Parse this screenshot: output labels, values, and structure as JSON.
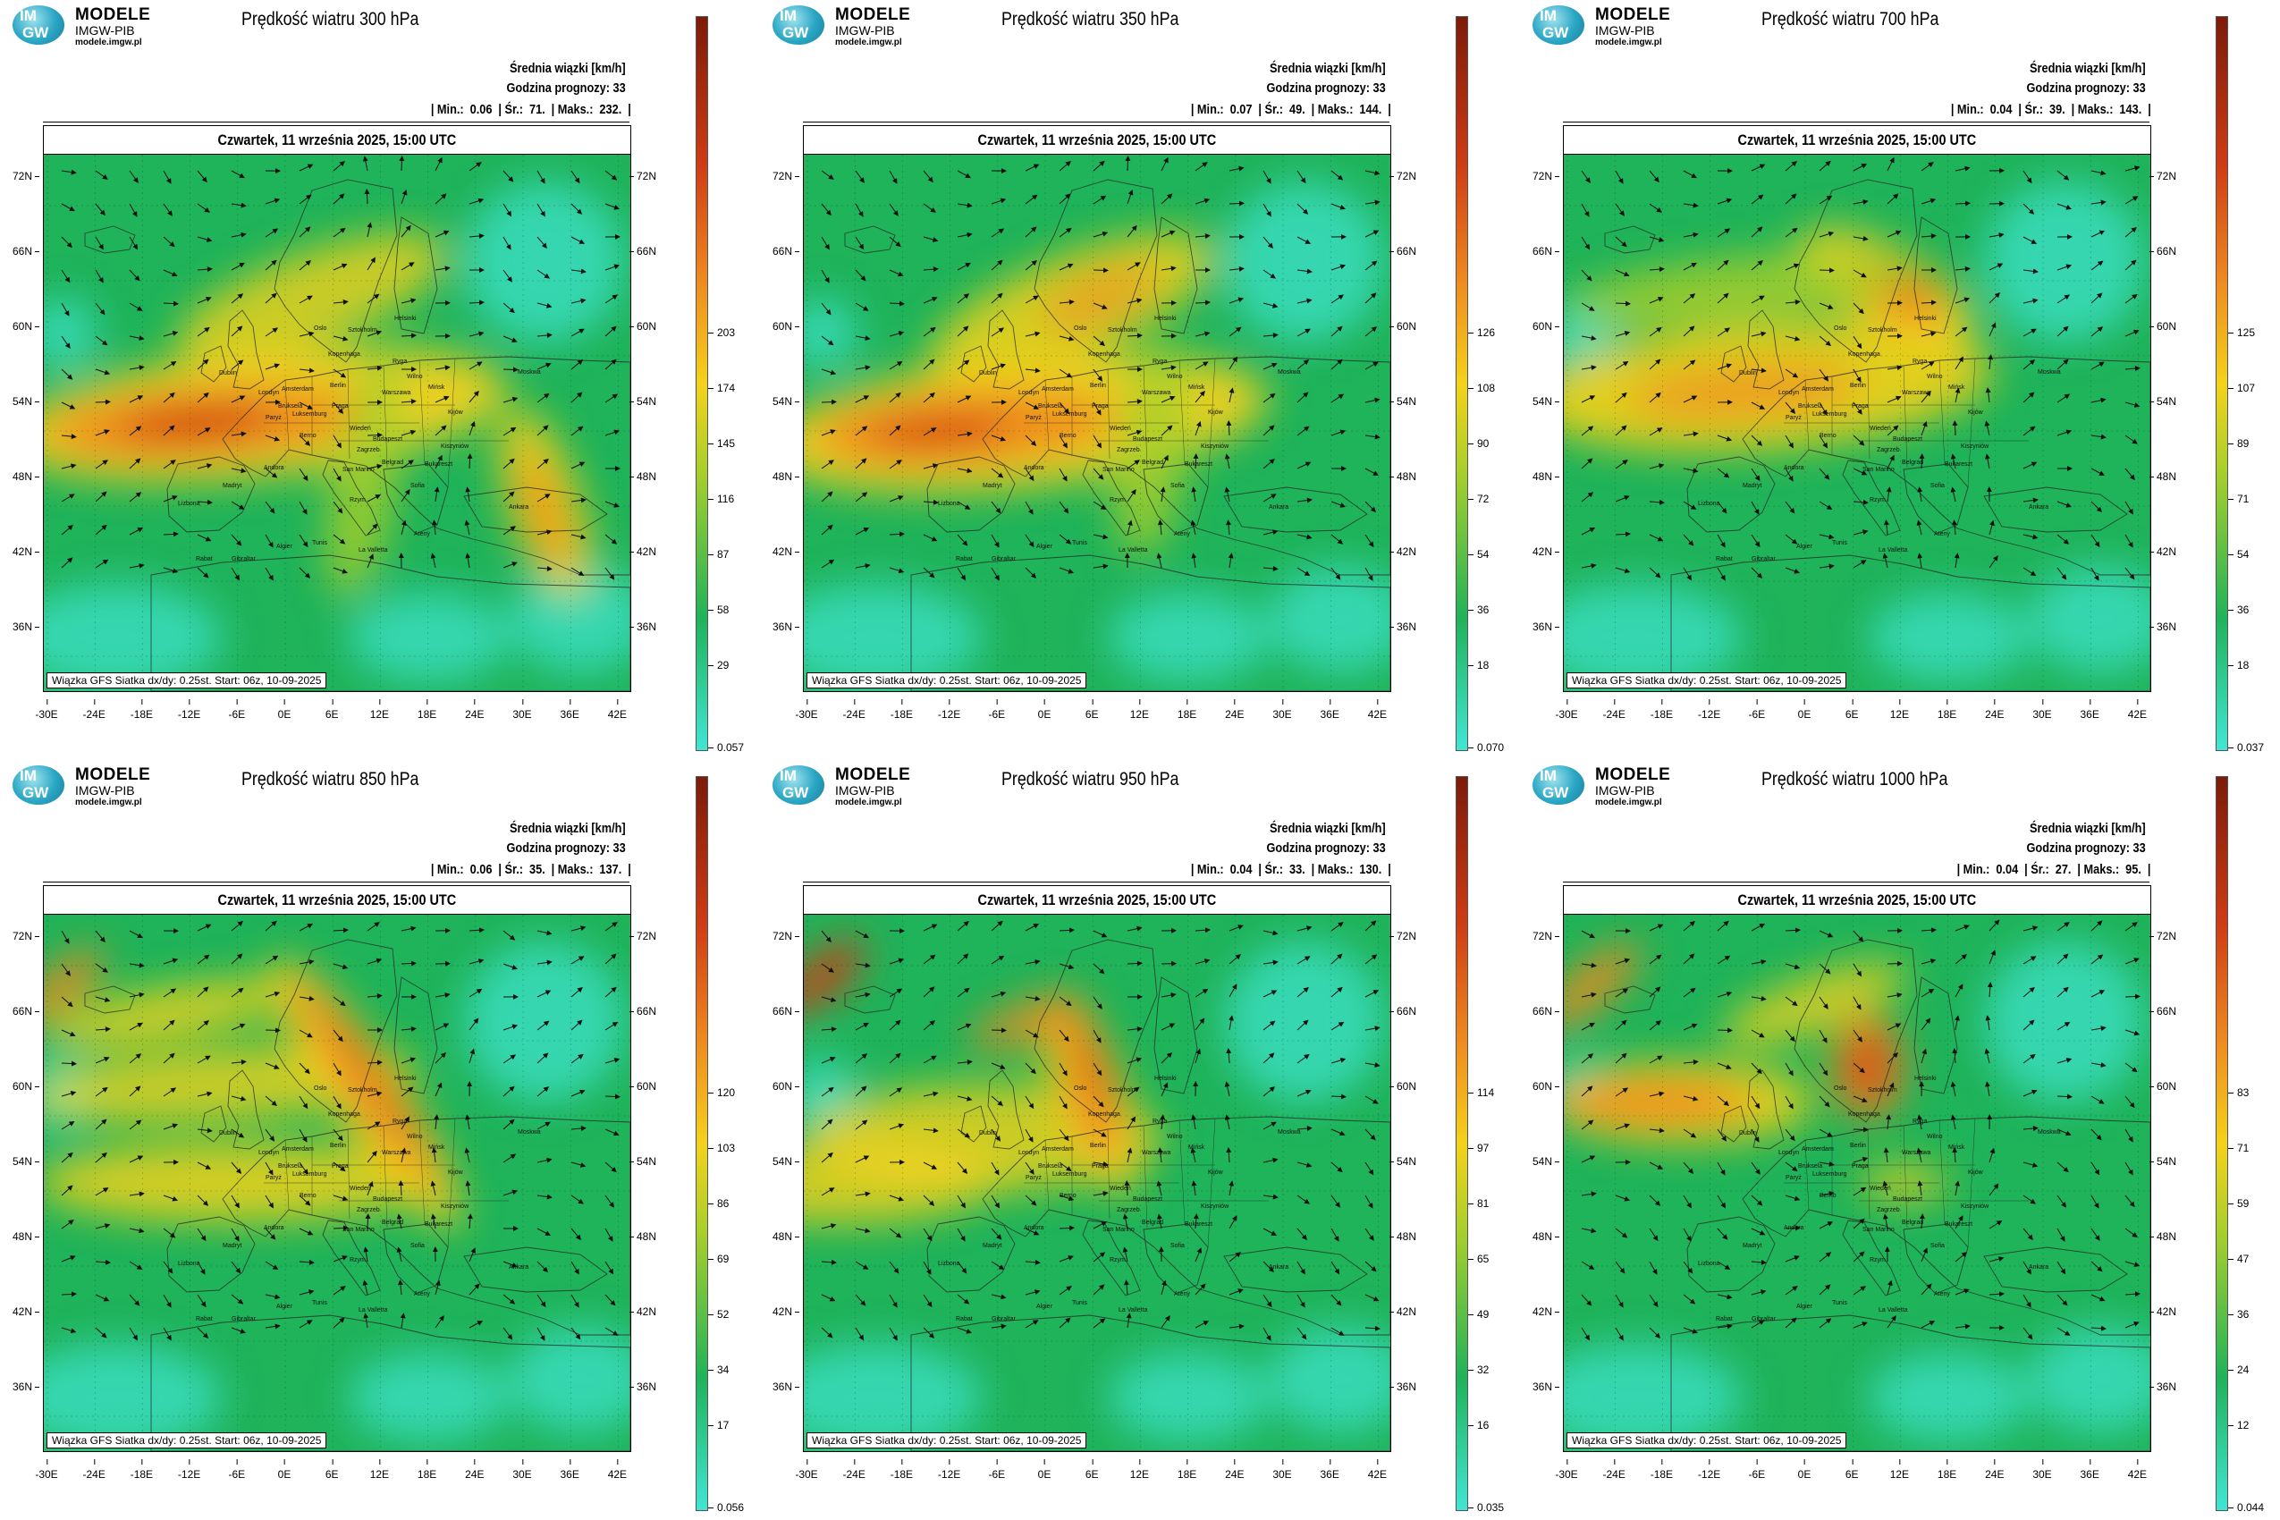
{
  "common": {
    "logo": {
      "mark_top": "IM",
      "mark_bottom": "GW",
      "name": "MODELE",
      "org": "IMGW-PIB",
      "url": "modele.imgw.pl"
    },
    "info_line1": "Średnia wiązki [km/h]",
    "info_line2": "Godzina prognozy: 33",
    "stat_labels": {
      "min": "| Min.:",
      "avg": "| Śr.:",
      "max": "| Maks.:",
      "end": "|"
    },
    "date": "Czwartek, 11 września 2025, 15:00 UTC",
    "footer": "Wiązka GFS Siatka dx/dy: 0.25st. Start: 06z, 10-09-2025",
    "lat_labels": [
      "72N",
      "66N",
      "60N",
      "54N",
      "48N",
      "42N",
      "36N"
    ],
    "lon_labels": [
      "-30E",
      "-24E",
      "-18E",
      "-12E",
      "-6E",
      "0E",
      "6E",
      "12E",
      "18E",
      "24E",
      "30E",
      "36E",
      "42E"
    ],
    "cities": [
      "Oslo",
      "Sztokholm",
      "Helsinki",
      "Ryga",
      "Wilno",
      "Mińsk",
      "Moskwa",
      "Kopenhaga",
      "Amsterdam",
      "Berlin",
      "Warszawa",
      "Londyn",
      "Bruksela",
      "Luksemburg",
      "Paryż",
      "Praga",
      "Kijów",
      "Wiedeń",
      "Berno",
      "Budapeszt",
      "Zagrzeb",
      "Belgrad",
      "Bukareszt",
      "Sofia",
      "Kiszyniów",
      "Ankara",
      "San Marino",
      "Andora",
      "Madryt",
      "Lizbona",
      "Rzym",
      "Tunis",
      "Algier",
      "Gibraltar",
      "Rabat",
      "La Valletta",
      "Ateny",
      "Dublin"
    ],
    "colors": {
      "cyan": "#40e6d4",
      "green": "#1fb35a",
      "yellowgreen": "#a8cf2a",
      "yellow": "#f5d21a",
      "orange": "#ef8a1e",
      "red": "#cf3b14",
      "darkred": "#7d1b08"
    }
  },
  "panels": [
    {
      "title": "Prędkość wiatru 300 hPa",
      "min": "0.06",
      "avg": "71.",
      "max": "232.",
      "scale": [
        "0.057",
        "29",
        "58",
        "87",
        "116",
        "145",
        "174",
        "203"
      ]
    },
    {
      "title": "Prędkość wiatru 350 hPa",
      "min": "0.07",
      "avg": "49.",
      "max": "144.",
      "scale": [
        "0.070",
        "18",
        "36",
        "54",
        "72",
        "90",
        "108",
        "126"
      ]
    },
    {
      "title": "Prędkość wiatru 700 hPa",
      "min": "0.04",
      "avg": "39.",
      "max": "143.",
      "scale": [
        "0.037",
        "18",
        "36",
        "54",
        "71",
        "89",
        "107",
        "125"
      ]
    },
    {
      "title": "Prędkość wiatru 850 hPa",
      "min": "0.06",
      "avg": "35.",
      "max": "137.",
      "scale": [
        "0.056",
        "17",
        "34",
        "52",
        "69",
        "86",
        "103",
        "120"
      ]
    },
    {
      "title": "Prędkość wiatru 950 hPa",
      "min": "0.04",
      "avg": "33.",
      "max": "130.",
      "scale": [
        "0.035",
        "16",
        "32",
        "49",
        "65",
        "81",
        "97",
        "114"
      ]
    },
    {
      "title": "Prędkość wiatru 1000 hPa",
      "min": "0.04",
      "avg": "27.",
      "max": "95.",
      "scale": [
        "0.044",
        "12",
        "24",
        "36",
        "47",
        "59",
        "71",
        "83"
      ]
    }
  ]
}
